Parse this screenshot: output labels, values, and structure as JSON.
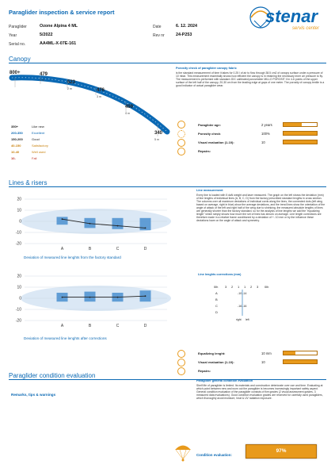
{
  "header": {
    "title": "Paraglider inspection & service report",
    "paraglider_label": "Paraglider",
    "paraglider_value": "Ozone Alpina 4 ML",
    "year_label": "Year",
    "year_value": "5/2022",
    "serial_label": "Serial no.",
    "serial_value": "AA4ML-X-07E-161",
    "date_label": "Date",
    "date_value": "6. 12. 2024",
    "rev_label": "Rev nr",
    "rev_value": "24-P253",
    "logo_text": "stenar",
    "logo_sub": "servis center"
  },
  "canopy": {
    "section_title": "Canopy",
    "porosity_points": [
      {
        "value": "800+",
        "unit": ""
      },
      {
        "value": "479",
        "unit": "1 m"
      },
      {
        "value": "523",
        "unit": "2 m"
      },
      {
        "value": "476",
        "unit": "3 m"
      },
      {
        "value": "499",
        "unit": "4 m"
      },
      {
        "value": "340",
        "unit": "5 m"
      }
    ],
    "legend": [
      {
        "range": "350+",
        "label": "Like new",
        "color": "#222222"
      },
      {
        "range": "200-350",
        "label": "Excellent",
        "color": "#0b69b4"
      },
      {
        "range": "150-200",
        "label": "Good",
        "color": "#222222"
      },
      {
        "range": "40-150",
        "label": "Satisfactory",
        "color": "#e89a1c"
      },
      {
        "range": "10-40",
        "label": "Well used",
        "color": "#e89a1c"
      },
      {
        "range": "10-",
        "label": "Fail",
        "color": "#222222"
      }
    ],
    "porosity_title": "Porosity check of paraglider canopy fabric",
    "porosity_text": "is the standard measurement of time it takes for 0.25 l of air to flow through 38.5 cm2 of canopy surface under a pressure of 10 mbar. This measurement essentially shows how efficient the canopy is in retaining the necessary inner air pressure to fly. The measurement is performed with standard JDC calibrated porosimeter MILLO POROSIT II in 4-6 points of the upper surface of the left half of the canopy, 20-30 cm from the leading edge at gaps of one meter. The porosity of canopy textile is a good indicator of actual paraglider wear.",
    "age_label": "Paraglider age:",
    "age_value": "2 years",
    "age_fill": 0.55,
    "porosity_label": "Porosity check",
    "porosity_value": "100%",
    "porosity_fill": 1.0,
    "visual_label": "Visual evaluation (1-10):",
    "visual_value": "10",
    "visual_fill": 1.0,
    "repairs_label": "Repairs:"
  },
  "lines": {
    "section_title": "Lines & risers",
    "chart1_caption": "Deviation of measured line lenghts from the factory standard",
    "chart2_caption": "Deviation of measured line lenghts after corrections",
    "measurement_title": "Line measurement",
    "measurement_text": "Every line is loaded with 5 daN weight and laser measured. The graph on the left shows the deviation (mm) of line lengths of individual lines (A, B, C, D) from the factory prescribed standard lengths in cross section. The columns over all maximum deviations of individual cords along the lines, the connected dots (left wing based on average, right in blue) show the average deviations, and the trend lines show the orientation of the angle of attack of the left and right half of the wing due to shrinking, the measured absolute lengths of lines are generally shorter than the factory standard, so for the analysis of line lengths we add the \"equalizing length\" which simply shows how much the set of lines has shrunk on average. Line length corrections are therefore made in a relative frame conditioned by a deviation of +- 10 mm or by the influence these deviations have on the angle of attack and symmetry.",
    "corrections_title": "Line lenghts corrections (mm)",
    "corr_header": [
      "0lh",
      "3",
      "2",
      "1",
      "1",
      "2",
      "3",
      "0lh"
    ],
    "corr_rows": [
      {
        "row": "A",
        "vals": "-10 -14"
      },
      {
        "row": "B",
        "vals": ""
      },
      {
        "row": "C",
        "vals": "-16 -16"
      },
      {
        "row": "D",
        "vals": ""
      }
    ],
    "corr_footer_left": "right",
    "corr_footer_right": "left",
    "equalizing_label": "Equalizing lenght:",
    "equalizing_value": "10 mm",
    "equalizing_fill": 0.35,
    "visual_label": "Visual evaluation (1-10):",
    "visual_value": "10",
    "visual_fill": 1.0,
    "repairs_label": "Repairs:"
  },
  "chart_data": [
    {
      "type": "bar",
      "categories": [
        "A",
        "B",
        "C",
        "D"
      ],
      "ylim": [
        -20,
        20
      ],
      "yticks": [
        20,
        10,
        0,
        -10,
        -20
      ],
      "series": [
        {
          "values": [
            1,
            -3,
            -4,
            -5
          ]
        }
      ],
      "trend": [
        2,
        -2,
        -4,
        -6
      ]
    },
    {
      "type": "bar",
      "categories": [
        "A",
        "B",
        "C",
        "D"
      ],
      "ylim": [
        -20,
        20
      ],
      "yticks": [
        20,
        10,
        0,
        -10,
        -20
      ],
      "series": [
        {
          "values": [
            2,
            3,
            2,
            4
          ]
        }
      ],
      "trend": [
        1,
        1,
        1,
        2
      ]
    }
  ],
  "condition": {
    "section_title": "Paraglider condition evaluation",
    "remarks_label": "Remarks, tips & warnings",
    "general_title": "Paraglider general condition evaluation",
    "general_text": "Shelf life of paraglider is limited. Its materials and construction deteriorate over use and time. Evaluating at which point between new and worn out the paraglider is becomes increasingly important safety aspect. General condition evaluation of the paraglider consists of five grades (2 visual assessment grades, 3 measured data evaluations). Good condition evaluation grades are reserved for carefully used paragliders, which thoroughly avoid moisture, heat & UV radiation exposure.",
    "evaluation_label": "Condition evaluation:",
    "evaluation_value": "97%"
  }
}
